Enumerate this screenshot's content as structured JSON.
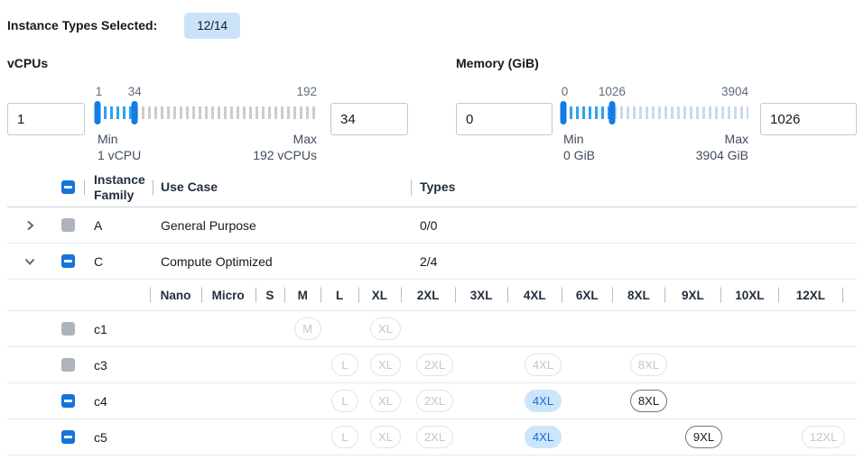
{
  "colors": {
    "accent_blue": "#1673dc",
    "slider_selected_tick": "#2fa2f3",
    "slider_unselected_tick": "#c8cdd5",
    "selected_badge_bg": "#cde5fa",
    "selected_badge_text": "#1170d4",
    "counter_badge_bg": "#cbe3f9",
    "disabled_gray": "#aeb4bc"
  },
  "header": {
    "label": "Instance Types Selected:",
    "badge": "12/14"
  },
  "filters": [
    {
      "label": "vCPUs",
      "from_value": "1",
      "to_value": "34",
      "scale_low": "1",
      "scale_mid": "34",
      "scale_high": "192",
      "min_label": "Min",
      "min_sub": "1 vCPU",
      "max_label": "Max",
      "max_sub": "192 vCPUs",
      "handle_pcts": [
        0,
        17
      ]
    },
    {
      "label": "Memory (GiB)",
      "from_value": "0",
      "to_value": "1026",
      "scale_low": "0",
      "scale_mid": "1026",
      "scale_high": "3904",
      "min_label": "Min",
      "min_sub": "0 GiB",
      "max_label": "Max",
      "max_sub": "3904 GiB",
      "handle_pcts": [
        0,
        26.3
      ]
    }
  ],
  "table": {
    "columns": {
      "family": "Instance Family",
      "use_case": "Use Case",
      "types": "Types"
    },
    "select_all_state": "indeterminate",
    "family_rows": [
      {
        "family": "A",
        "use_case": "General Purpose",
        "types": "0/0",
        "expanded": false,
        "checkbox": "disabled"
      },
      {
        "family": "C",
        "use_case": "Compute Optimized",
        "types": "2/4",
        "expanded": true,
        "checkbox": "indeterminate"
      }
    ],
    "size_columns": [
      "Nano",
      "Micro",
      "S",
      "M",
      "L",
      "XL",
      "2XL",
      "3XL",
      "4XL",
      "6XL",
      "8XL",
      "9XL",
      "10XL",
      "12XL"
    ],
    "type_rows": [
      {
        "name": "c1",
        "checkbox": "disabled",
        "badges": {
          "M": "disabled",
          "XL": "disabled"
        }
      },
      {
        "name": "c3",
        "checkbox": "disabled",
        "badges": {
          "L": "disabled",
          "XL": "disabled",
          "2XL": "disabled",
          "4XL": "disabled",
          "8XL": "disabled"
        }
      },
      {
        "name": "c4",
        "checkbox": "indeterminate",
        "badges": {
          "L": "disabled",
          "XL": "disabled",
          "2XL": "disabled",
          "4XL": "selected",
          "8XL": "enabled"
        }
      },
      {
        "name": "c5",
        "checkbox": "indeterminate",
        "badges": {
          "L": "disabled",
          "XL": "disabled",
          "2XL": "disabled",
          "4XL": "selected",
          "9XL": "enabled",
          "12XL": "disabled"
        }
      }
    ]
  }
}
